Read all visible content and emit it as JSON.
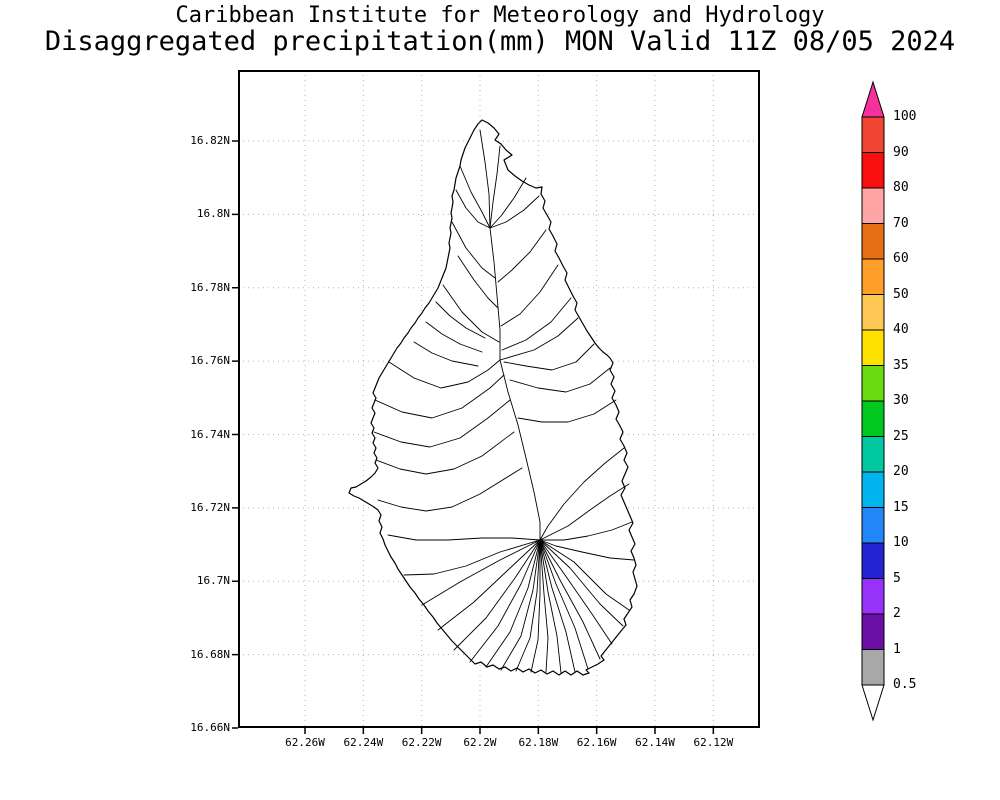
{
  "header": {
    "line1": "Caribbean Institute for Meteorology and Hydrology",
    "line2": "Disaggregated precipitation(mm) MON Valid 11Z 08/05 2024"
  },
  "axes": {
    "y_ticks": [
      "16.82N",
      "16.8N",
      "16.78N",
      "16.76N",
      "16.74N",
      "16.72N",
      "16.7N",
      "16.68N",
      "16.66N"
    ],
    "x_ticks": [
      "62.26W",
      "62.24W",
      "62.22W",
      "62.2W",
      "62.18W",
      "62.16W",
      "62.14W",
      "62.12W"
    ]
  },
  "legend": {
    "labels": [
      "100",
      "90",
      "80",
      "70",
      "60",
      "50",
      "40",
      "35",
      "30",
      "25",
      "20",
      "15",
      "10",
      "5",
      "2",
      "1",
      "0.5"
    ],
    "segment_colors": [
      "#f04632",
      "#fa0f0f",
      "#ffa5a5",
      "#e66e14",
      "#ff9e28",
      "#ffc855",
      "#ffe100",
      "#69dc0f",
      "#00c81e",
      "#00c8a0",
      "#00b4f0",
      "#2387fa",
      "#2323d2",
      "#9632fa",
      "#690fa5",
      "#a8a8a8"
    ],
    "arrow_top_color": "#f5329b",
    "arrow_bottom_color": "#ffffff"
  },
  "colors": {
    "grid": "#b4b4b4",
    "map_outline": "#000000",
    "background": "#ffffff"
  }
}
